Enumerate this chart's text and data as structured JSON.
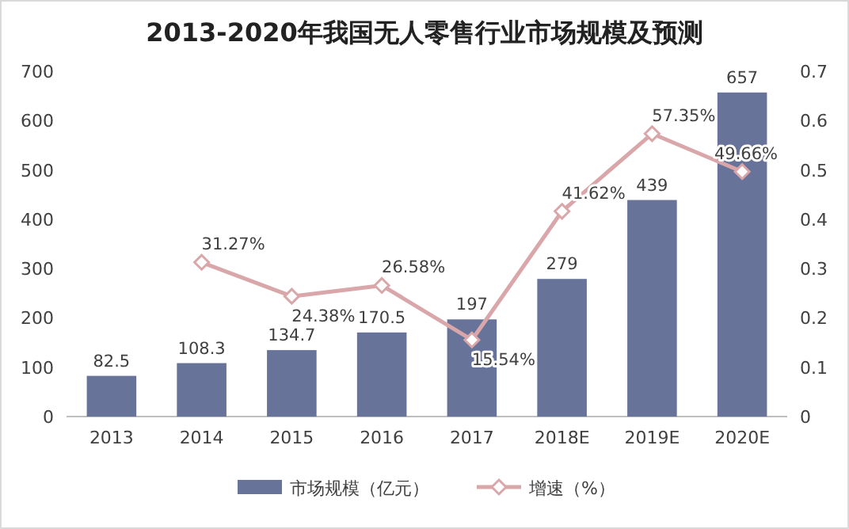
{
  "chart_data": {
    "type": "bar",
    "title": "2013-2020年我国无人零售行业市场规模及预测",
    "categories": [
      "2013",
      "2014",
      "2015",
      "2016",
      "2017",
      "2018E",
      "2019E",
      "2020E"
    ],
    "series": [
      {
        "name": "市场规模（亿元）",
        "color": "#68739a",
        "values": [
          82.5,
          108.3,
          134.7,
          170.5,
          197,
          279,
          439,
          657
        ],
        "value_labels": [
          "82.5",
          "108.3",
          "134.7",
          "170.5",
          "197",
          "279",
          "439",
          "657"
        ]
      },
      {
        "name": "增速（%）",
        "type": "line",
        "axis": "y2",
        "color": "#d9a7a9",
        "marker": "diamond",
        "values": [
          null,
          0.3127,
          0.2438,
          0.2658,
          0.1554,
          0.4162,
          0.5735,
          0.4966
        ],
        "value_labels": [
          null,
          "31.27%",
          "24.38%",
          "26.58%",
          "15.54%",
          "41.62%",
          "57.35%",
          "49.66%"
        ]
      }
    ],
    "ylim": [
      0,
      700
    ],
    "yticks": [
      0,
      100,
      200,
      300,
      400,
      500,
      600,
      700
    ],
    "y2lim": [
      0,
      0.7
    ],
    "y2ticks": [
      0,
      0.1,
      0.2,
      0.3,
      0.4,
      0.5,
      0.6,
      0.7
    ],
    "legend": "bottom",
    "grid": false
  }
}
